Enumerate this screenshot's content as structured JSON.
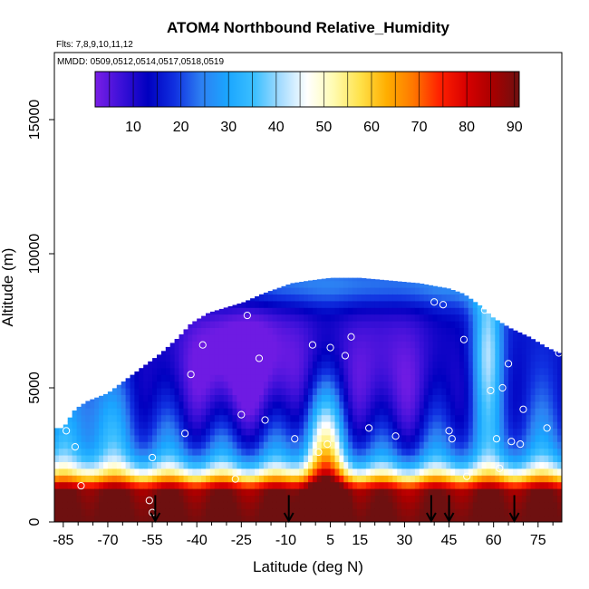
{
  "chart_data": {
    "type": "heatmap",
    "title": "ATOM4 Northbound Relative_Humidity",
    "subtitle_flights": "Flts: 7,8,9,10,11,12",
    "subtitle_dates": "MMDD: 0509,0512,0514,0517,0518,0519",
    "xlabel": "Latitude (deg N)",
    "ylabel": "Altitude (m)",
    "xlim": [
      -88,
      83
    ],
    "ylim": [
      0,
      17500
    ],
    "x_ticks": [
      -85,
      -70,
      -55,
      -40,
      -25,
      -10,
      5,
      15,
      30,
      45,
      60,
      75
    ],
    "x_tick_labels": [
      "-85",
      "-70",
      "-55",
      "-40",
      "-25",
      "-10",
      "5",
      "15",
      "30",
      "45",
      "60",
      "75"
    ],
    "y_ticks": [
      0,
      5000,
      10000,
      15000
    ],
    "y_tick_labels": [
      "0",
      "5000",
      "10000",
      "15000"
    ],
    "colorbar": {
      "min": 2,
      "max": 91,
      "ticks": [
        10,
        20,
        30,
        40,
        50,
        60,
        70,
        80,
        90
      ],
      "tick_labels": [
        "10",
        "20",
        "30",
        "40",
        "50",
        "60",
        "70",
        "80",
        "90"
      ],
      "colors": [
        "#7a1ee6",
        "#3a10d8",
        "#0000c0",
        "#1030e0",
        "#2d7ff2",
        "#1aa6ff",
        "#3bbfff",
        "#a6dcff",
        "#ffffff",
        "#fffbb0",
        "#ffe24a",
        "#ffae00",
        "#ff7800",
        "#ff2000",
        "#d80000",
        "#a80000",
        "#6e1010"
      ]
    },
    "ascent_arrow_latitudes": [
      -54,
      -9,
      39,
      45,
      67
    ],
    "sample_points": [
      {
        "lat": -84,
        "alt": 3400
      },
      {
        "lat": -81,
        "alt": 2800
      },
      {
        "lat": -79,
        "alt": 1350
      },
      {
        "lat": -56,
        "alt": 800
      },
      {
        "lat": -55,
        "alt": 350
      },
      {
        "lat": -55,
        "alt": 2400
      },
      {
        "lat": -44,
        "alt": 3300
      },
      {
        "lat": -42,
        "alt": 5500
      },
      {
        "lat": -38,
        "alt": 6600
      },
      {
        "lat": -27,
        "alt": 1600
      },
      {
        "lat": -25,
        "alt": 4000
      },
      {
        "lat": -23,
        "alt": 7700
      },
      {
        "lat": -19,
        "alt": 6100
      },
      {
        "lat": -17,
        "alt": 3800
      },
      {
        "lat": -7,
        "alt": 3100
      },
      {
        "lat": -1,
        "alt": 6600
      },
      {
        "lat": 1,
        "alt": 2600
      },
      {
        "lat": 4,
        "alt": 2900
      },
      {
        "lat": 5,
        "alt": 6500
      },
      {
        "lat": 10,
        "alt": 6200
      },
      {
        "lat": 12,
        "alt": 6900
      },
      {
        "lat": 18,
        "alt": 3500
      },
      {
        "lat": 27,
        "alt": 3200
      },
      {
        "lat": 40,
        "alt": 8200
      },
      {
        "lat": 43,
        "alt": 8100
      },
      {
        "lat": 45,
        "alt": 3400
      },
      {
        "lat": 46,
        "alt": 3100
      },
      {
        "lat": 50,
        "alt": 6800
      },
      {
        "lat": 51,
        "alt": 1700
      },
      {
        "lat": 57,
        "alt": 7900
      },
      {
        "lat": 59,
        "alt": 4900
      },
      {
        "lat": 61,
        "alt": 3100
      },
      {
        "lat": 62,
        "alt": 2000
      },
      {
        "lat": 63,
        "alt": 5000
      },
      {
        "lat": 65,
        "alt": 5900
      },
      {
        "lat": 66,
        "alt": 3000
      },
      {
        "lat": 69,
        "alt": 2900
      },
      {
        "lat": 70,
        "alt": 4200
      },
      {
        "lat": 78,
        "alt": 3500
      },
      {
        "lat": 82,
        "alt": 6300
      }
    ]
  }
}
